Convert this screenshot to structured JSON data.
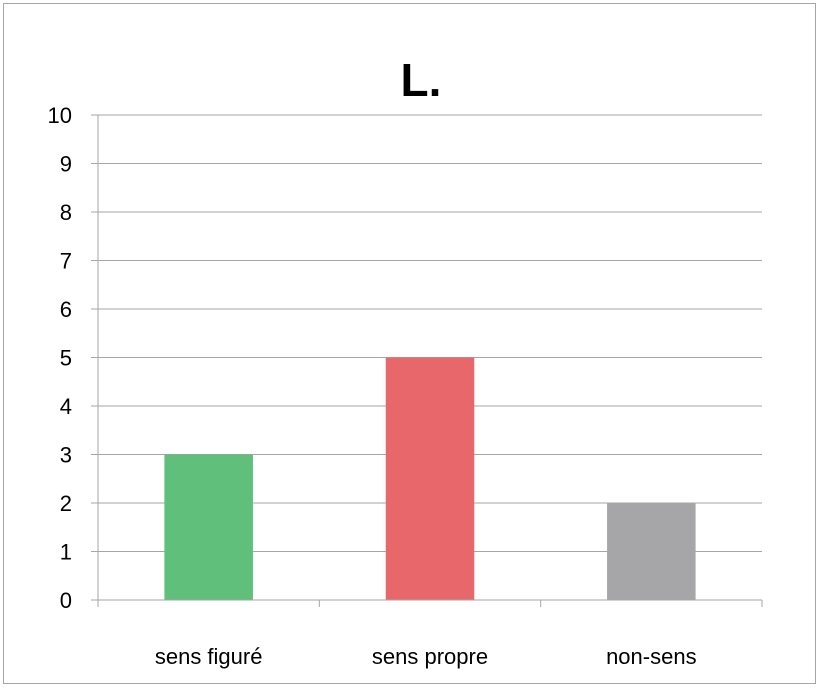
{
  "chart_data": {
    "type": "bar",
    "title": "L.",
    "categories": [
      "sens figuré",
      "sens propre",
      "non-sens"
    ],
    "values": [
      3,
      5,
      2
    ],
    "colors": [
      "#5fbf7b",
      "#e8676b",
      "#a6a6a9"
    ],
    "ylim": [
      0,
      10
    ],
    "yticks": [
      "0",
      "1",
      "2",
      "3",
      "4",
      "5",
      "6",
      "7",
      "8",
      "9",
      "10"
    ],
    "grid": true,
    "legend": "none"
  }
}
